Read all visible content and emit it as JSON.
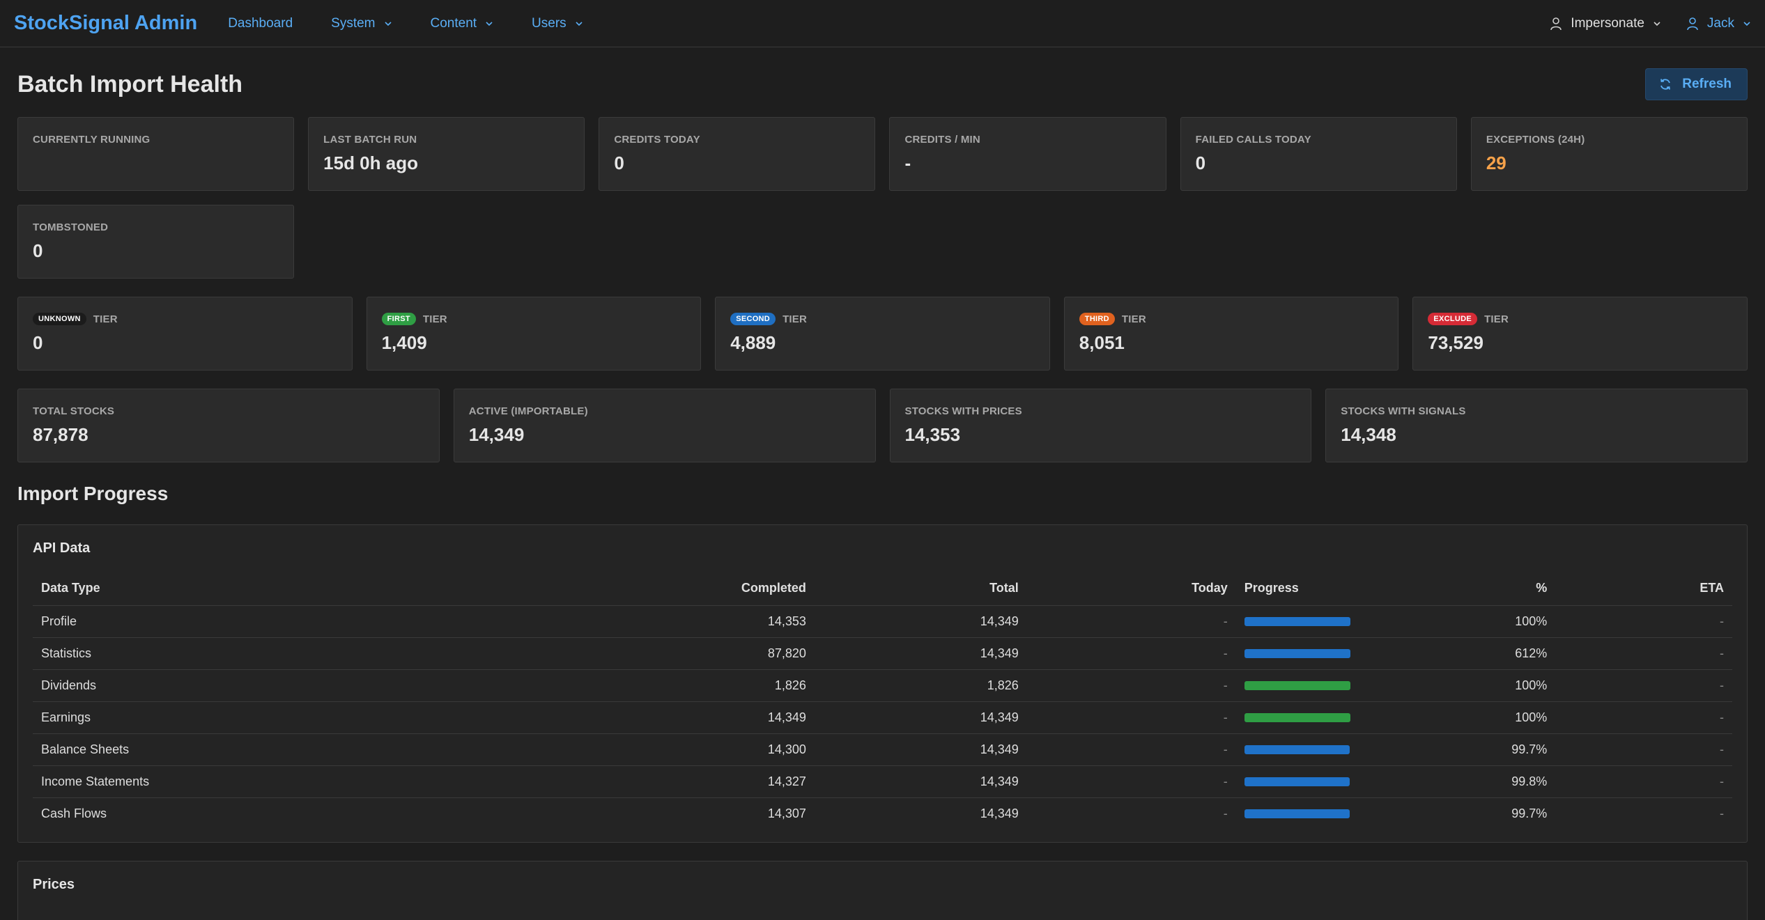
{
  "nav": {
    "brand": "StockSignal Admin",
    "items": [
      {
        "label": "Dashboard",
        "dropdown": false
      },
      {
        "label": "System",
        "dropdown": true
      },
      {
        "label": "Content",
        "dropdown": true
      },
      {
        "label": "Users",
        "dropdown": true
      }
    ],
    "impersonate": "Impersonate",
    "user": "Jack"
  },
  "page": {
    "title": "Batch Import Health",
    "refresh_label": "Refresh"
  },
  "stats": {
    "currently_running": {
      "label": "Currently Running",
      "value": ""
    },
    "last_batch_run": {
      "label": "Last Batch Run",
      "value": "15d 0h ago"
    },
    "credits_today": {
      "label": "Credits Today",
      "value": "0"
    },
    "credits_per_min": {
      "label": "Credits / Min",
      "value": "-"
    },
    "failed_calls_today": {
      "label": "Failed Calls Today",
      "value": "0"
    },
    "exceptions_24h": {
      "label": "Exceptions (24H)",
      "value": "29"
    },
    "tombstoned": {
      "label": "Tombstoned",
      "value": "0"
    }
  },
  "tiers": [
    {
      "badge": "UNKNOWN",
      "label": "TIER",
      "value": "0",
      "color": "#1b1b1b"
    },
    {
      "badge": "FIRST",
      "label": "TIER",
      "value": "1,409",
      "color": "#2f9e44"
    },
    {
      "badge": "SECOND",
      "label": "TIER",
      "value": "4,889",
      "color": "#1f6fc2"
    },
    {
      "badge": "THIRD",
      "label": "TIER",
      "value": "8,051",
      "color": "#e0621f"
    },
    {
      "badge": "EXCLUDE",
      "label": "TIER",
      "value": "73,529",
      "color": "#d62b36"
    }
  ],
  "totals": [
    {
      "label": "Total Stocks",
      "value": "87,878"
    },
    {
      "label": "Active (Importable)",
      "value": "14,349"
    },
    {
      "label": "Stocks With Prices",
      "value": "14,353"
    },
    {
      "label": "Stocks With Signals",
      "value": "14,348"
    }
  ],
  "import_progress": {
    "title": "Import Progress",
    "api_data": {
      "title": "API Data",
      "columns": [
        "Data Type",
        "Completed",
        "Total",
        "Today",
        "Progress",
        "%",
        "ETA"
      ],
      "rows": [
        {
          "type": "Profile",
          "completed": "14,353",
          "total": "14,349",
          "today": "-",
          "progress": 1.0,
          "bar_color": "blue",
          "pct": "100%",
          "eta": "-"
        },
        {
          "type": "Statistics",
          "completed": "87,820",
          "total": "14,349",
          "today": "-",
          "progress": 1.0,
          "bar_color": "blue",
          "pct": "612%",
          "eta": "-"
        },
        {
          "type": "Dividends",
          "completed": "1,826",
          "total": "1,826",
          "today": "-",
          "progress": 1.0,
          "bar_color": "green",
          "pct": "100%",
          "eta": "-"
        },
        {
          "type": "Earnings",
          "completed": "14,349",
          "total": "14,349",
          "today": "-",
          "progress": 1.0,
          "bar_color": "green",
          "pct": "100%",
          "eta": "-"
        },
        {
          "type": "Balance Sheets",
          "completed": "14,300",
          "total": "14,349",
          "today": "-",
          "progress": 0.997,
          "bar_color": "blue",
          "pct": "99.7%",
          "eta": "-"
        },
        {
          "type": "Income Statements",
          "completed": "14,327",
          "total": "14,349",
          "today": "-",
          "progress": 0.998,
          "bar_color": "blue",
          "pct": "99.8%",
          "eta": "-"
        },
        {
          "type": "Cash Flows",
          "completed": "14,307",
          "total": "14,349",
          "today": "-",
          "progress": 0.997,
          "bar_color": "blue",
          "pct": "99.7%",
          "eta": "-"
        }
      ]
    },
    "prices": {
      "title": "Prices"
    }
  }
}
